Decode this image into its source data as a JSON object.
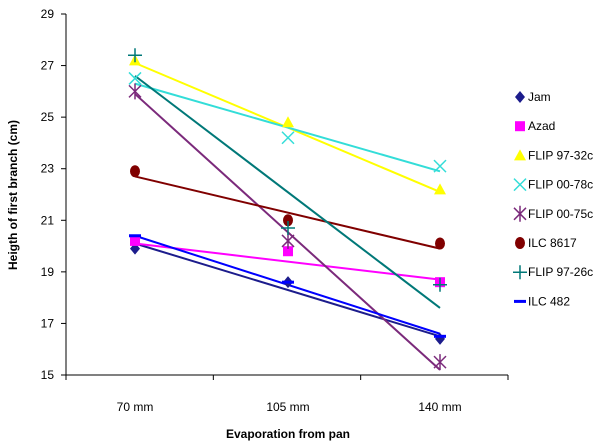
{
  "chart_data": {
    "type": "scatter",
    "title": "",
    "xlabel": "Evaporation from pan",
    "ylabel": "Heigth of first branch (cm)",
    "categories": [
      "70 mm",
      "105 mm",
      "140 mm"
    ],
    "ylim": [
      15,
      29
    ],
    "yticks": [
      15,
      17,
      19,
      21,
      23,
      25,
      27,
      29
    ],
    "legend_position": "right",
    "series": [
      {
        "name": "Jam",
        "values": [
          19.9,
          18.6,
          16.4
        ],
        "trend": [
          20.1,
          18.3,
          16.5
        ],
        "color": "#1c1c8c",
        "marker": "diamond"
      },
      {
        "name": "Azad",
        "values": [
          20.2,
          19.8,
          18.6
        ],
        "trend": [
          20.1,
          19.4,
          18.7
        ],
        "color": "#ff00ff",
        "marker": "square"
      },
      {
        "name": "FLIP 97-32c",
        "values": [
          27.2,
          24.8,
          22.2
        ],
        "trend": [
          27.1,
          24.6,
          22.1
        ],
        "color": "#ffff00",
        "marker": "triangle"
      },
      {
        "name": "FLIP 00-78c",
        "values": [
          26.5,
          24.2,
          23.1
        ],
        "trend": [
          26.3,
          24.6,
          22.9
        ],
        "color": "#33ddd8",
        "marker": "x"
      },
      {
        "name": "FLIP 00-75c",
        "values": [
          26.0,
          20.2,
          15.5
        ],
        "trend": [
          25.9,
          20.6,
          15.2
        ],
        "color": "#7b2a7b",
        "marker": "x-bar"
      },
      {
        "name": "ILC 8617",
        "values": [
          22.9,
          21.0,
          20.1
        ],
        "trend": [
          22.7,
          21.3,
          19.9
        ],
        "color": "#800000",
        "marker": "circle"
      },
      {
        "name": "FLIP 97-26c",
        "values": [
          27.4,
          20.7,
          18.5
        ],
        "trend": [
          26.6,
          22.1,
          17.6
        ],
        "color": "#007878",
        "marker": "plus"
      },
      {
        "name": "ILC 482",
        "values": [
          20.4,
          18.6,
          16.5
        ],
        "trend": [
          20.4,
          18.5,
          16.6
        ],
        "color": "#0000ff",
        "marker": "dash"
      }
    ]
  }
}
